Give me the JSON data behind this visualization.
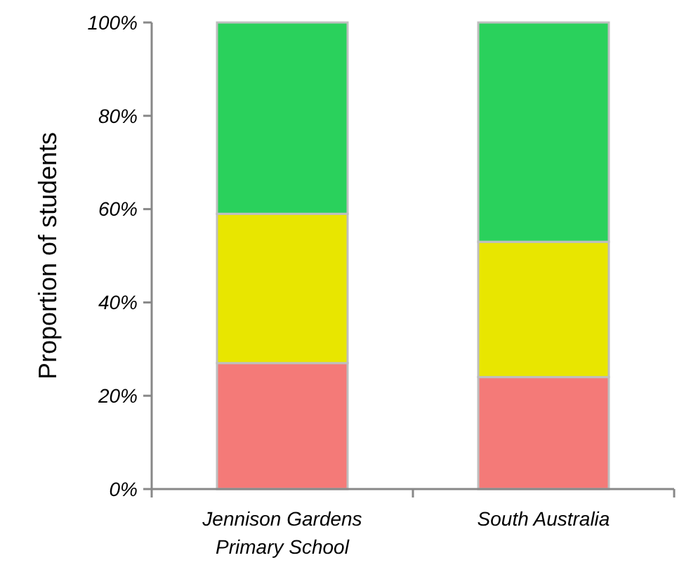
{
  "chart_data": {
    "type": "bar",
    "stacked": true,
    "ylabel": "Proportion of students",
    "categories": [
      "Jennison Gardens\nPrimary School",
      "South Australia"
    ],
    "series": [
      {
        "color": "#f47a78",
        "values": [
          27,
          24
        ]
      },
      {
        "color": "#e8e600",
        "values": [
          32,
          29
        ]
      },
      {
        "color": "#2ad15c",
        "values": [
          41,
          47
        ]
      }
    ],
    "ylim": [
      0,
      100
    ],
    "yticks": [
      {
        "value": 0,
        "label": "0%"
      },
      {
        "value": 20,
        "label": "20%"
      },
      {
        "value": 40,
        "label": "40%"
      },
      {
        "value": 60,
        "label": "60%"
      },
      {
        "value": 80,
        "label": "80%"
      },
      {
        "value": 100,
        "label": "100%"
      }
    ],
    "grid": false
  }
}
